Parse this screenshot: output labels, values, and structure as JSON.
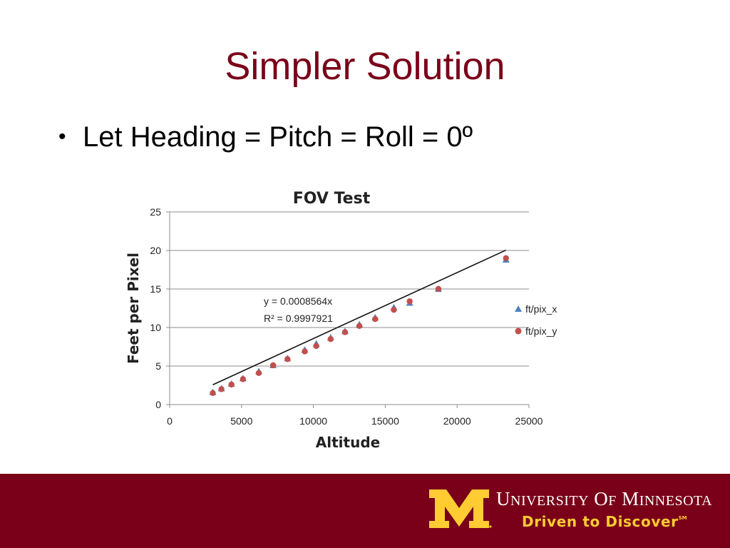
{
  "slide": {
    "title": "Simpler Solution",
    "bullet": "Let Heading = Pitch = Roll = 0º"
  },
  "footer": {
    "university_first": "UNIVERSITY OF MINNESOTA",
    "tagline": "Driven to Discover",
    "tagline_mark": "SM",
    "logo": "block-m-logo",
    "background": "#7a0019",
    "logo_color": "#ffcc33"
  },
  "chart_data": {
    "type": "scatter",
    "title": "FOV Test",
    "xlabel": "Altitude",
    "ylabel": "Feet per Pixel",
    "xlim": [
      0,
      25000
    ],
    "ylim": [
      0,
      25
    ],
    "xticks": [
      0,
      5000,
      10000,
      15000,
      20000,
      25000
    ],
    "yticks": [
      0,
      5,
      10,
      15,
      20,
      25
    ],
    "grid": true,
    "legend_position": "right",
    "trendline": {
      "equation": "y = 0.0008564x",
      "r_squared": "R² = 0.9997921",
      "slope": 0.0008564,
      "x_range": [
        3000,
        23400
      ]
    },
    "series": [
      {
        "name": "ft/pix_x",
        "marker": "triangle",
        "color": "#4f81bd",
        "x": [
          3000,
          3600,
          4300,
          5100,
          6200,
          7200,
          8200,
          9400,
          10200,
          11200,
          12200,
          13200,
          14300,
          15600,
          16700,
          18700,
          23400
        ],
        "y": [
          1.6,
          2.1,
          2.7,
          3.4,
          4.3,
          5.1,
          6.0,
          7.1,
          7.9,
          8.7,
          9.5,
          10.4,
          11.3,
          12.6,
          13.2,
          15.0,
          18.8
        ]
      },
      {
        "name": "ft/pix_y",
        "marker": "circle",
        "color": "#c0504d",
        "x": [
          3000,
          3600,
          4300,
          5100,
          6200,
          7200,
          8200,
          9400,
          10200,
          11200,
          12200,
          13200,
          14300,
          15600,
          16700,
          18700,
          23400
        ],
        "y": [
          1.5,
          2.0,
          2.6,
          3.3,
          4.1,
          5.1,
          5.9,
          6.9,
          7.6,
          8.5,
          9.4,
          10.2,
          11.1,
          12.3,
          13.4,
          15.0,
          19.0
        ]
      }
    ]
  }
}
